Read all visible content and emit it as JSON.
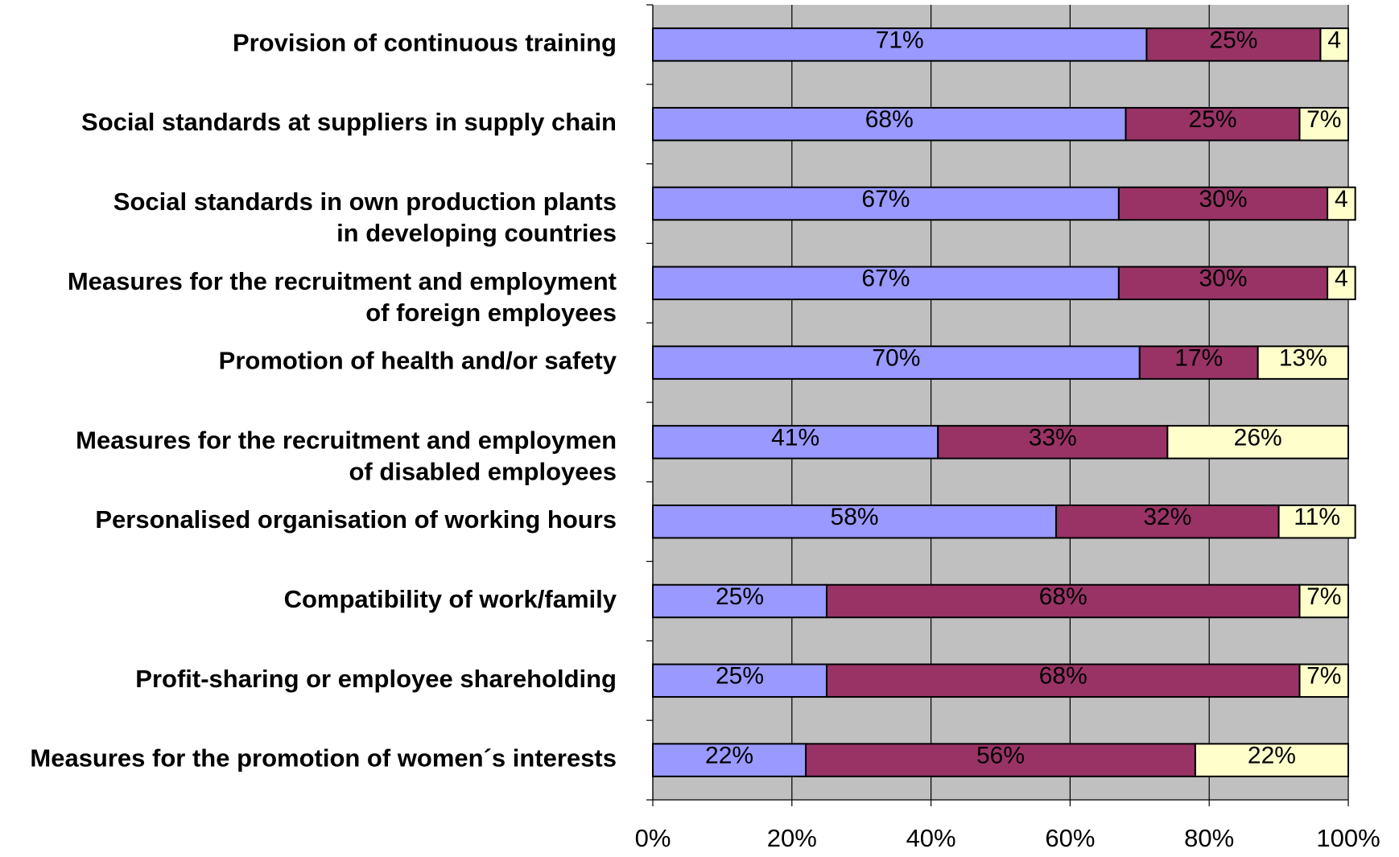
{
  "chart_data": {
    "type": "stacked_bar_horizontal",
    "categories": [
      "Provision of continuous training",
      "Social standards at suppliers in supply chain",
      "Social standards in own production plants\nin developing countries",
      "Measures for the recruitment and employment\nof foreign employees",
      "Promotion of health and/or safety",
      "Measures for the recruitment and employmen\nof disabled employees",
      "Personalised organisation of working hours",
      "Compatibility of work/family",
      "Profit-sharing or employee shareholding",
      "Measures for the promotion of women´s interests"
    ],
    "series": [
      {
        "color": "#9999ff",
        "values": [
          71,
          68,
          67,
          67,
          70,
          41,
          58,
          25,
          25,
          22
        ],
        "value_labels": [
          "71%",
          "68%",
          "67%",
          "67%",
          "70%",
          "41%",
          "58%",
          "25%",
          "25%",
          "22%"
        ]
      },
      {
        "color": "#993366",
        "values": [
          25,
          25,
          30,
          30,
          17,
          33,
          32,
          68,
          68,
          56
        ],
        "value_labels": [
          "25%",
          "25%",
          "30%",
          "30%",
          "17%",
          "33%",
          "32%",
          "68%",
          "68%",
          "56%"
        ]
      },
      {
        "color": "#ffffcc",
        "values": [
          4,
          7,
          4,
          4,
          13,
          26,
          11,
          7,
          7,
          22
        ],
        "value_labels": [
          "4",
          "7%",
          "4",
          "4",
          "13%",
          "26%",
          "11%",
          "7%",
          "7%",
          "22%"
        ]
      }
    ],
    "xlim": [
      0,
      100
    ],
    "xticks": [
      {
        "value": 0,
        "label": "0%"
      },
      {
        "value": 20,
        "label": "20%"
      },
      {
        "value": 40,
        "label": "40%"
      },
      {
        "value": 60,
        "label": "60%"
      },
      {
        "value": 80,
        "label": "80%"
      },
      {
        "value": 100,
        "label": "100%"
      }
    ],
    "grid": true,
    "background": "#c0c0c0"
  }
}
